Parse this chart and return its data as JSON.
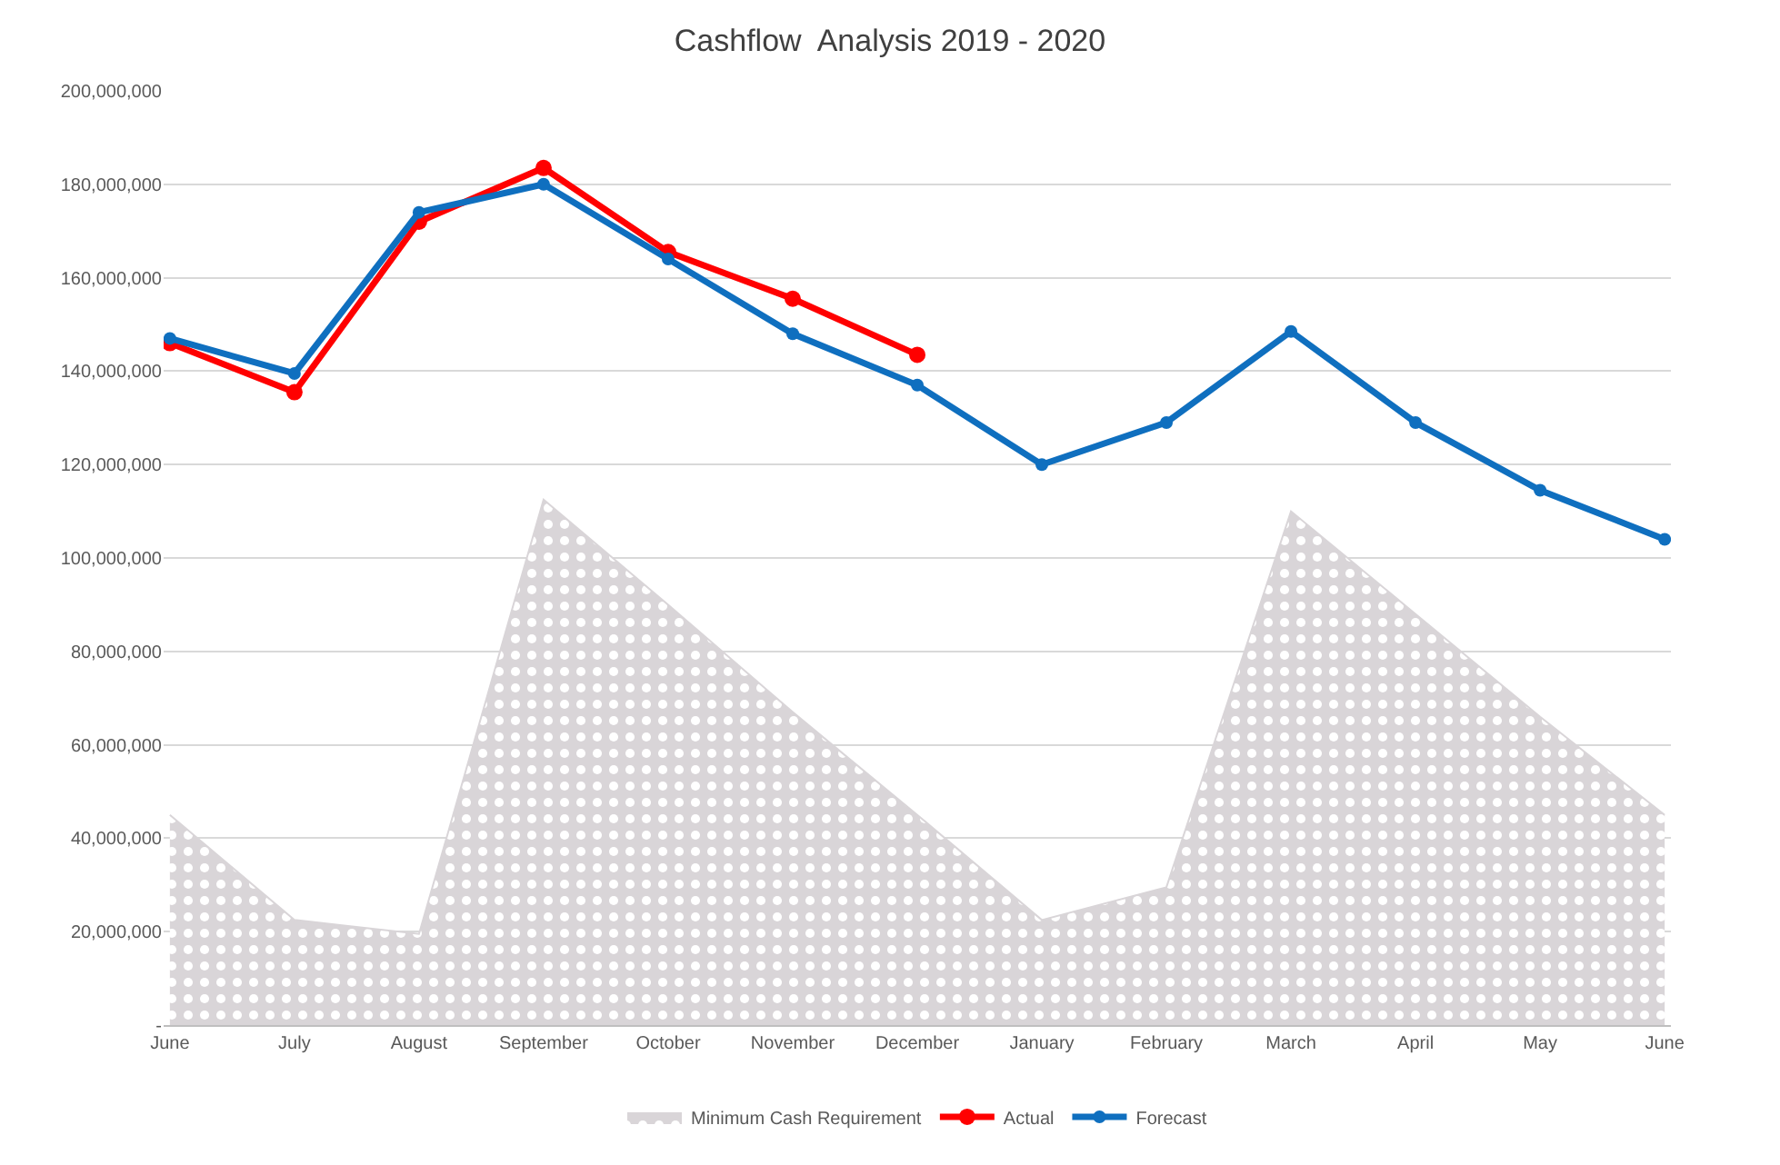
{
  "chart_data": {
    "type": "line",
    "title": "Cashflow  Analysis 2019 - 2020",
    "categories": [
      "June",
      "July",
      "August",
      "September",
      "October",
      "November",
      "December",
      "January",
      "February",
      "March",
      "April",
      "May",
      "June"
    ],
    "series": [
      {
        "name": "Minimum Cash Requirement",
        "type": "area",
        "color": "#d9d5d8",
        "marker": "none",
        "values": [
          45000000,
          22500000,
          19500000,
          112500000,
          90000000,
          67000000,
          45000000,
          22500000,
          29500000,
          110000000,
          88000000,
          66000000,
          45000000
        ]
      },
      {
        "name": "Actual",
        "color": "#ff0000",
        "values": [
          146000000,
          135500000,
          172000000,
          183500000,
          165500000,
          155500000,
          143500000,
          null,
          null,
          null,
          null,
          null,
          null
        ]
      },
      {
        "name": "Forecast",
        "color": "#0f6fbf",
        "values": [
          147000000,
          139500000,
          174000000,
          180000000,
          164000000,
          148000000,
          137000000,
          120000000,
          129000000,
          148500000,
          129000000,
          114500000,
          104000000
        ]
      }
    ],
    "ylim": [
      0,
      200000000
    ],
    "yticks": [
      {
        "value": 0,
        "label": "-"
      },
      {
        "value": 20000000,
        "label": "20,000,000"
      },
      {
        "value": 40000000,
        "label": "40,000,000"
      },
      {
        "value": 60000000,
        "label": "60,000,000"
      },
      {
        "value": 80000000,
        "label": "80,000,000"
      },
      {
        "value": 100000000,
        "label": "100,000,000"
      },
      {
        "value": 120000000,
        "label": "120,000,000"
      },
      {
        "value": 140000000,
        "label": "140,000,000"
      },
      {
        "value": 160000000,
        "label": "160,000,000"
      },
      {
        "value": 180000000,
        "label": "180,000,000"
      },
      {
        "value": 200000000,
        "label": "200,000,000"
      }
    ],
    "grid": "y",
    "legend": "bottom",
    "marker": "circle",
    "line_style": "solid"
  }
}
